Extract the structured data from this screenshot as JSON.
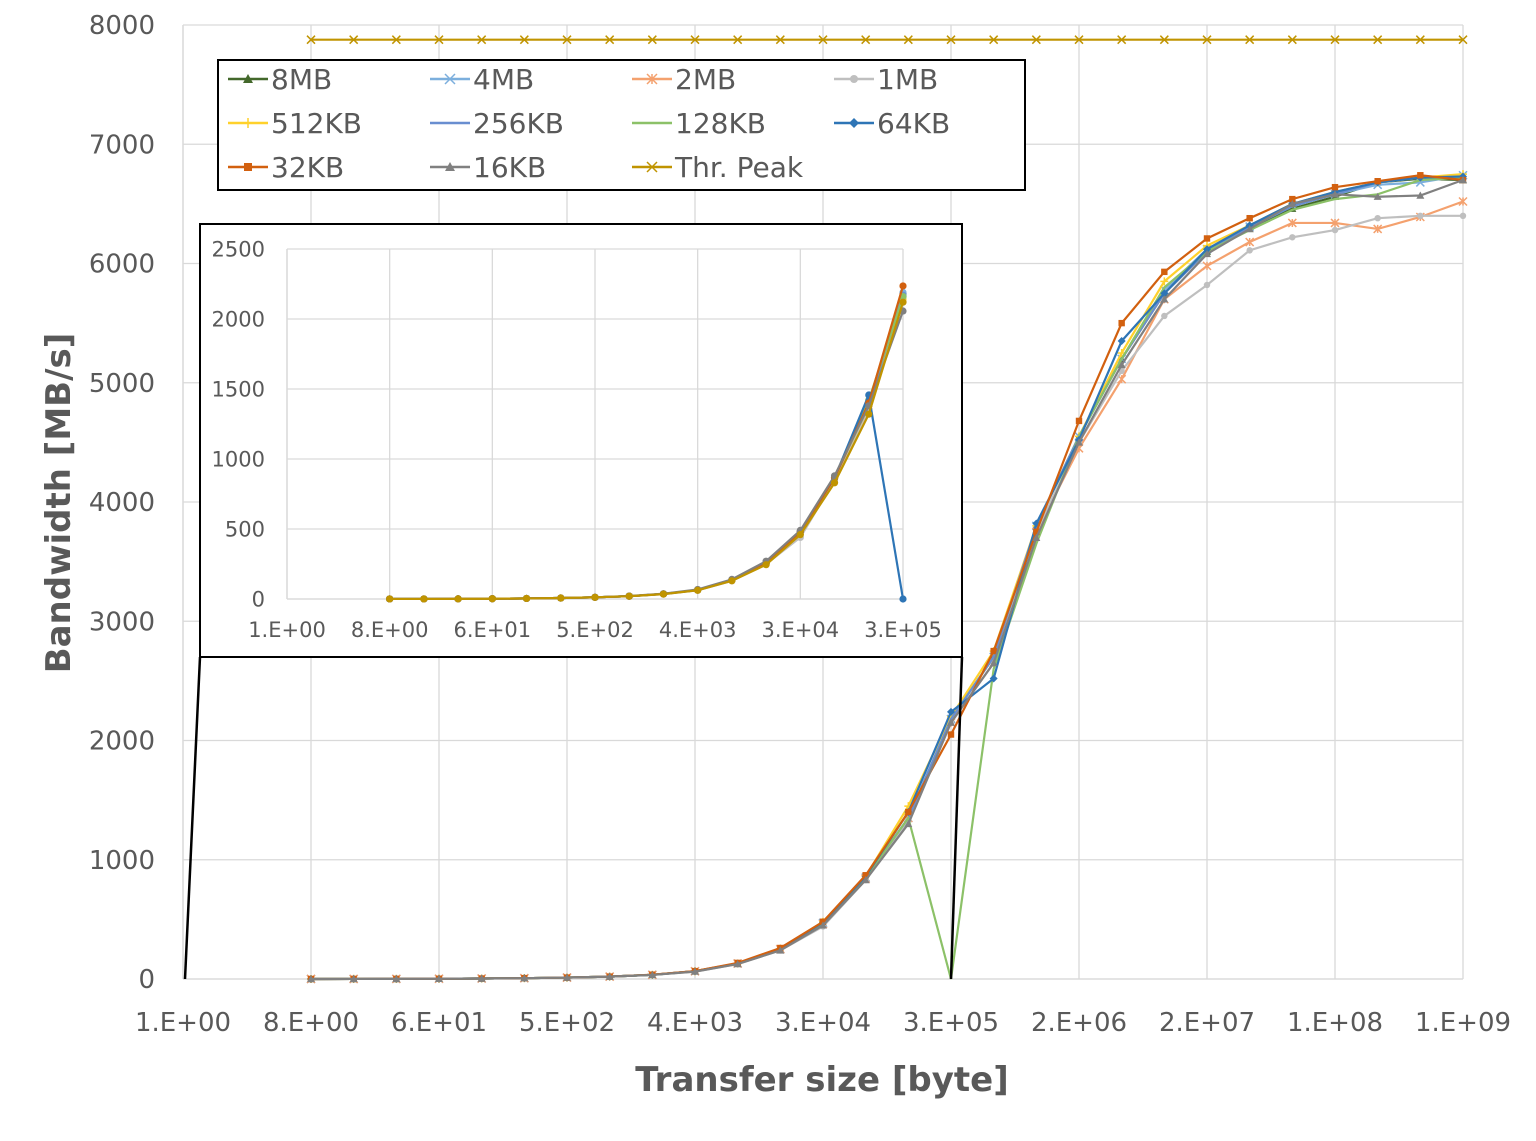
{
  "chart_data": [
    {
      "type": "line",
      "xlabel": "Transfer size [byte]",
      "ylabel": "Bandwidth [MB/s]",
      "x_scale": "log2",
      "x_ticks": [
        "1.E+00",
        "8.E+00",
        "6.E+01",
        "5.E+02",
        "4.E+03",
        "3.E+04",
        "3.E+05",
        "2.E+06",
        "2.E+07",
        "1.E+08",
        "1.E+09"
      ],
      "xlim": [
        1,
        1073741824
      ],
      "x": [
        8,
        16,
        32,
        64,
        128,
        256,
        512,
        1024,
        2048,
        4096,
        8192,
        16384,
        32768,
        65536,
        131072,
        262144,
        524288,
        1048576,
        2097152,
        4194304,
        8388608,
        16777216,
        33554432,
        67108864,
        134217728,
        268435456,
        536870912,
        1073741824
      ],
      "ylim": [
        0,
        8000
      ],
      "y_ticks": [
        0,
        1000,
        2000,
        3000,
        4000,
        5000,
        6000,
        7000,
        8000
      ],
      "grid": true,
      "legend_placement": "top-left",
      "series": [
        {
          "name": "8MB",
          "color": "#43682b",
          "marker": "triangle",
          "values": [
            0.3,
            0.6,
            1,
            2,
            4,
            7,
            12,
            20,
            35,
            65,
            130,
            250,
            470,
            850,
            1350,
            2180,
            2700,
            3800,
            4550,
            5200,
            5750,
            6100,
            6290,
            6460,
            6560,
            6680,
            6710,
            6700
          ]
        },
        {
          "name": "4MB",
          "color": "#7cafdd",
          "marker": "x",
          "values": [
            0.3,
            0.6,
            1,
            2,
            4,
            7,
            12,
            20,
            35,
            65,
            130,
            250,
            470,
            850,
            1350,
            2180,
            2700,
            3800,
            4550,
            5200,
            5780,
            6120,
            6310,
            6490,
            6580,
            6660,
            6680,
            6740
          ]
        },
        {
          "name": "2MB",
          "color": "#f4a16e",
          "marker": "star",
          "values": [
            0.3,
            0.6,
            1,
            2,
            4,
            7,
            12,
            20,
            35,
            65,
            130,
            250,
            460,
            840,
            1350,
            2150,
            2650,
            3750,
            4450,
            5030,
            5700,
            5980,
            6180,
            6340,
            6340,
            6290,
            6390,
            6520
          ]
        },
        {
          "name": "1MB",
          "color": "#bfbfbf",
          "marker": "circle",
          "values": [
            0.3,
            0.6,
            1,
            2,
            4,
            7,
            12,
            20,
            35,
            62,
            125,
            240,
            440,
            830,
            1330,
            2150,
            2650,
            3750,
            4500,
            5100,
            5560,
            5820,
            6110,
            6220,
            6280,
            6380,
            6400,
            6400
          ]
        },
        {
          "name": "512KB",
          "color": "#ffd12b",
          "marker": "plus",
          "values": [
            0.3,
            0.6,
            1,
            2,
            4,
            7,
            12,
            20,
            35,
            65,
            130,
            255,
            480,
            860,
            1450,
            2200,
            2750,
            3800,
            4550,
            5250,
            5850,
            6150,
            6320,
            6500,
            6600,
            6680,
            6720,
            6750
          ]
        },
        {
          "name": "256KB",
          "color": "#698ed0",
          "marker": "none",
          "values": [
            0.3,
            0.6,
            1,
            2,
            4,
            7,
            12,
            20,
            35,
            65,
            130,
            250,
            470,
            850,
            1350,
            2180,
            2700,
            3800,
            4550,
            5200,
            5750,
            6100,
            6300,
            6480,
            6580,
            6680,
            6720,
            6720
          ]
        },
        {
          "name": "128KB",
          "color": "#8cc168",
          "marker": "none",
          "values": [
            0.3,
            0.6,
            1,
            2,
            4,
            7,
            12,
            20,
            35,
            65,
            130,
            250,
            470,
            850,
            1350,
            0,
            2600,
            3650,
            4550,
            5200,
            5800,
            6100,
            6280,
            6450,
            6540,
            6580,
            6700,
            6720
          ]
        },
        {
          "name": "64KB",
          "color": "#2e75b6",
          "marker": "diamond",
          "values": [
            0.3,
            0.6,
            1,
            2,
            4,
            7,
            12,
            20,
            35,
            65,
            130,
            255,
            475,
            860,
            1400,
            2240,
            2520,
            3820,
            4520,
            5350,
            5750,
            6120,
            6320,
            6500,
            6600,
            6680,
            6720,
            6730
          ]
        },
        {
          "name": "32KB",
          "color": "#d2600f",
          "marker": "square",
          "values": [
            0.3,
            0.6,
            1,
            2,
            4,
            7,
            12,
            20,
            36,
            66,
            135,
            260,
            480,
            870,
            1400,
            2050,
            2750,
            3750,
            4680,
            5500,
            5930,
            6210,
            6380,
            6540,
            6640,
            6690,
            6740,
            6700
          ]
        },
        {
          "name": "16KB",
          "color": "#808080",
          "marker": "triangle",
          "values": [
            0.3,
            0.6,
            1,
            2,
            4,
            7,
            12,
            20,
            34,
            62,
            125,
            240,
            450,
            830,
            1300,
            2150,
            2650,
            3700,
            4500,
            5150,
            5700,
            6080,
            6290,
            6500,
            6580,
            6560,
            6570,
            6700
          ]
        },
        {
          "name": "Thr. Peak",
          "color": "#c09400",
          "marker": "x",
          "values": [
            7877,
            7877,
            7877,
            7877,
            7877,
            7877,
            7877,
            7877,
            7877,
            7877,
            7877,
            7877,
            7877,
            7877,
            7877,
            7877,
            7877,
            7877,
            7877,
            7877,
            7877,
            7877,
            7877,
            7877,
            7877,
            7877,
            7877,
            7877
          ]
        }
      ]
    },
    {
      "type": "line",
      "role": "inset",
      "x_scale": "log2",
      "x_ticks": [
        "1.E+00",
        "8.E+00",
        "6.E+01",
        "5.E+02",
        "4.E+03",
        "3.E+04",
        "3.E+05"
      ],
      "xlim": [
        1,
        262144
      ],
      "x": [
        8,
        16,
        32,
        64,
        128,
        256,
        512,
        1024,
        2048,
        4096,
        8192,
        16384,
        32768,
        65536,
        131072,
        262144
      ],
      "ylim": [
        0,
        2500
      ],
      "y_ticks": [
        0,
        500,
        1000,
        1500,
        2000,
        2500
      ],
      "grid": true,
      "series": [
        {
          "name": "8MB",
          "color": "#43682b",
          "values": [
            0.3,
            0.6,
            1,
            2,
            4,
            7,
            12,
            20,
            36,
            64,
            136,
            257,
            480,
            865,
            1380,
            2180
          ]
        },
        {
          "name": "4MB",
          "color": "#7cafdd",
          "values": [
            0.3,
            0.6,
            1,
            2,
            4,
            7,
            12,
            20,
            36,
            64,
            136,
            257,
            480,
            865,
            1400,
            2190
          ]
        },
        {
          "name": "2MB",
          "color": "#f4a16e",
          "values": [
            0.3,
            0.6,
            1,
            2,
            4,
            7,
            12,
            20,
            36,
            64,
            136,
            257,
            470,
            860,
            1360,
            2160
          ]
        },
        {
          "name": "1MB",
          "color": "#bfbfbf",
          "values": [
            0.3,
            0.6,
            1,
            2,
            4,
            7,
            12,
            20,
            35,
            62,
            130,
            250,
            440,
            850,
            1340,
            2150
          ]
        },
        {
          "name": "512KB",
          "color": "#ffd12b",
          "values": [
            0.3,
            0.6,
            1,
            2,
            4,
            7,
            12,
            20,
            36,
            64,
            136,
            257,
            480,
            865,
            1380,
            2140
          ]
        },
        {
          "name": "256KB",
          "color": "#698ed0",
          "values": [
            0.3,
            0.6,
            1,
            2,
            4,
            7,
            12,
            20,
            36,
            64,
            136,
            257,
            480,
            865,
            1390,
            2170
          ]
        },
        {
          "name": "128KB",
          "color": "#8cc168",
          "values": [
            0.3,
            0.6,
            1,
            2,
            4,
            7,
            12,
            20,
            36,
            64,
            136,
            257,
            480,
            865,
            1420,
            2160
          ]
        },
        {
          "name": "64KB",
          "color": "#2e75b6",
          "values": [
            0.3,
            0.6,
            1,
            2,
            4,
            7,
            12,
            20,
            36,
            64,
            136,
            257,
            480,
            865,
            1457,
            0
          ]
        },
        {
          "name": "32KB",
          "color": "#d2600f",
          "values": [
            0.3,
            0.6,
            1,
            2,
            4,
            7,
            12,
            20,
            36,
            64,
            136,
            257,
            480,
            865,
            1400,
            2236
          ]
        },
        {
          "name": "16KB",
          "color": "#808080",
          "values": [
            0.3,
            0.6,
            1,
            2,
            4,
            7,
            12,
            22,
            38,
            68,
            140,
            270,
            490,
            880,
            1380,
            2057
          ]
        },
        {
          "name": "Thr. Peak",
          "color": "#c09400",
          "values": [
            0.3,
            0.6,
            1,
            2,
            4,
            7,
            12,
            20,
            35,
            62,
            130,
            245,
            460,
            830,
            1320,
            2120
          ]
        }
      ]
    }
  ]
}
